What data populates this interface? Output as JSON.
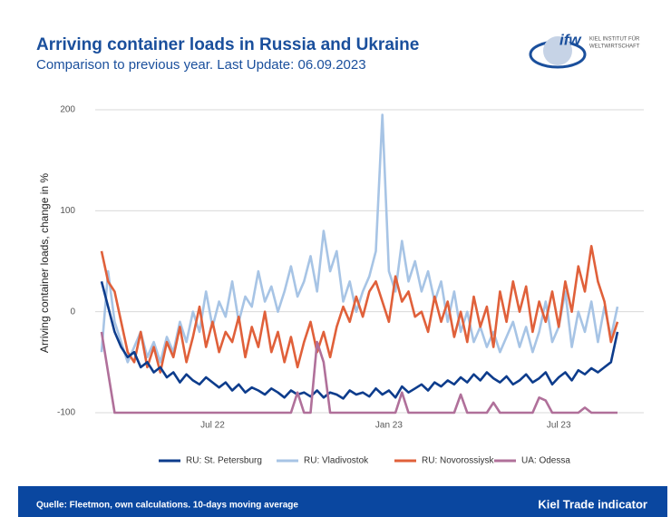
{
  "chart_data": {
    "type": "line",
    "title": "Arriving container loads in Russia and Ukraine",
    "subtitle": "Comparison to previous year. Last Update: 06.09.2023",
    "y_label": "Arriving container loads, change in %",
    "categories": [
      null,
      null,
      null,
      null,
      null,
      null,
      null,
      null,
      null,
      null,
      null,
      null,
      null,
      null,
      null,
      null,
      null,
      "Jul 22",
      null,
      null,
      null,
      null,
      null,
      null,
      null,
      null,
      null,
      null,
      null,
      null,
      null,
      null,
      null,
      null,
      null,
      null,
      null,
      null,
      null,
      null,
      null,
      null,
      null,
      null,
      "Jan 23",
      null,
      null,
      null,
      null,
      null,
      null,
      null,
      null,
      null,
      null,
      null,
      null,
      null,
      null,
      null,
      null,
      null,
      null,
      null,
      null,
      null,
      null,
      null,
      null,
      null,
      "Jul 23",
      null,
      null,
      null,
      null,
      null,
      null,
      null,
      null,
      null
    ],
    "ylim": [
      -110,
      200
    ],
    "yticks": [
      -100,
      0,
      100,
      200
    ],
    "grid": true,
    "series": [
      {
        "name": "RU: St. Petersburg",
        "color": "#0d3c8c",
        "values": [
          30,
          5,
          -20,
          -35,
          -45,
          -40,
          -55,
          -50,
          -60,
          -55,
          -65,
          -60,
          -70,
          -62,
          -68,
          -72,
          -65,
          -70,
          -75,
          -70,
          -78,
          -72,
          -80,
          -75,
          -78,
          -82,
          -76,
          -80,
          -85,
          -78,
          -82,
          -80,
          -84,
          -78,
          -85,
          -80,
          -82,
          -86,
          -78,
          -82,
          -80,
          -84,
          -76,
          -82,
          -78,
          -85,
          -74,
          -80,
          -76,
          -72,
          -78,
          -70,
          -74,
          -68,
          -72,
          -65,
          -70,
          -62,
          -68,
          -60,
          -66,
          -70,
          -64,
          -72,
          -68,
          -62,
          -70,
          -66,
          -60,
          -72,
          -65,
          -60,
          -68,
          -58,
          -62,
          -56,
          -60,
          -55,
          -50,
          -20
        ]
      },
      {
        "name": "RU: Vladivostok",
        "color": "#a7c4e5",
        "values": [
          -40,
          40,
          -10,
          -30,
          -50,
          -35,
          -20,
          -45,
          -30,
          -50,
          -25,
          -40,
          -10,
          -30,
          0,
          -20,
          20,
          -15,
          10,
          -5,
          30,
          -10,
          15,
          5,
          40,
          10,
          25,
          0,
          20,
          45,
          15,
          30,
          55,
          20,
          80,
          40,
          60,
          10,
          30,
          0,
          20,
          35,
          60,
          195,
          40,
          20,
          70,
          30,
          50,
          20,
          40,
          10,
          30,
          -10,
          20,
          -20,
          0,
          -30,
          -15,
          -35,
          -20,
          -40,
          -25,
          -10,
          -35,
          -15,
          -40,
          -20,
          10,
          -30,
          -15,
          20,
          -35,
          0,
          -20,
          10,
          -30,
          5,
          -25,
          5
        ]
      },
      {
        "name": "RU: Novorossiysk",
        "color": "#e0603a",
        "values": [
          60,
          30,
          20,
          -10,
          -40,
          -50,
          -20,
          -55,
          -35,
          -60,
          -30,
          -45,
          -15,
          -50,
          -25,
          5,
          -35,
          -10,
          -40,
          -20,
          -30,
          -5,
          -45,
          -15,
          -35,
          0,
          -40,
          -20,
          -50,
          -25,
          -55,
          -30,
          -10,
          -40,
          -20,
          -45,
          -15,
          5,
          -10,
          15,
          -5,
          20,
          30,
          10,
          -10,
          35,
          10,
          20,
          -5,
          0,
          -20,
          15,
          -10,
          10,
          -25,
          0,
          -30,
          15,
          -15,
          5,
          -35,
          20,
          -10,
          30,
          0,
          25,
          -20,
          10,
          -10,
          20,
          -15,
          30,
          0,
          45,
          20,
          65,
          30,
          10,
          -30,
          -10
        ]
      },
      {
        "name": "UA: Odessa",
        "color": "#b0709a",
        "values": [
          -20,
          -60,
          -100,
          -100,
          -100,
          -100,
          -100,
          -100,
          -100,
          -100,
          -100,
          -100,
          -100,
          -100,
          -100,
          -100,
          -100,
          -100,
          -100,
          -100,
          -100,
          -100,
          -100,
          -100,
          -100,
          -100,
          -100,
          -100,
          -100,
          -100,
          -80,
          -100,
          -100,
          -30,
          -50,
          -100,
          -100,
          -100,
          -100,
          -100,
          -100,
          -100,
          -100,
          -100,
          -100,
          -100,
          -80,
          -100,
          -100,
          -100,
          -100,
          -100,
          -100,
          -100,
          -100,
          -82,
          -100,
          -100,
          -100,
          -100,
          -90,
          -100,
          -100,
          -100,
          -100,
          -100,
          -100,
          -85,
          -88,
          -100,
          -100,
          -100,
          -100,
          -100,
          -95,
          -100,
          -100,
          -100,
          -100,
          -100
        ]
      }
    ]
  },
  "logo": {
    "mark": "ifw",
    "name_line1": "KIEL INSTITUT FÜR",
    "name_line2": "WELTWIRTSCHAFT"
  },
  "footer": {
    "source": "Quelle: Fleetmon, own calculations. 10-days moving average",
    "brand": "Kiel Trade indicator"
  }
}
